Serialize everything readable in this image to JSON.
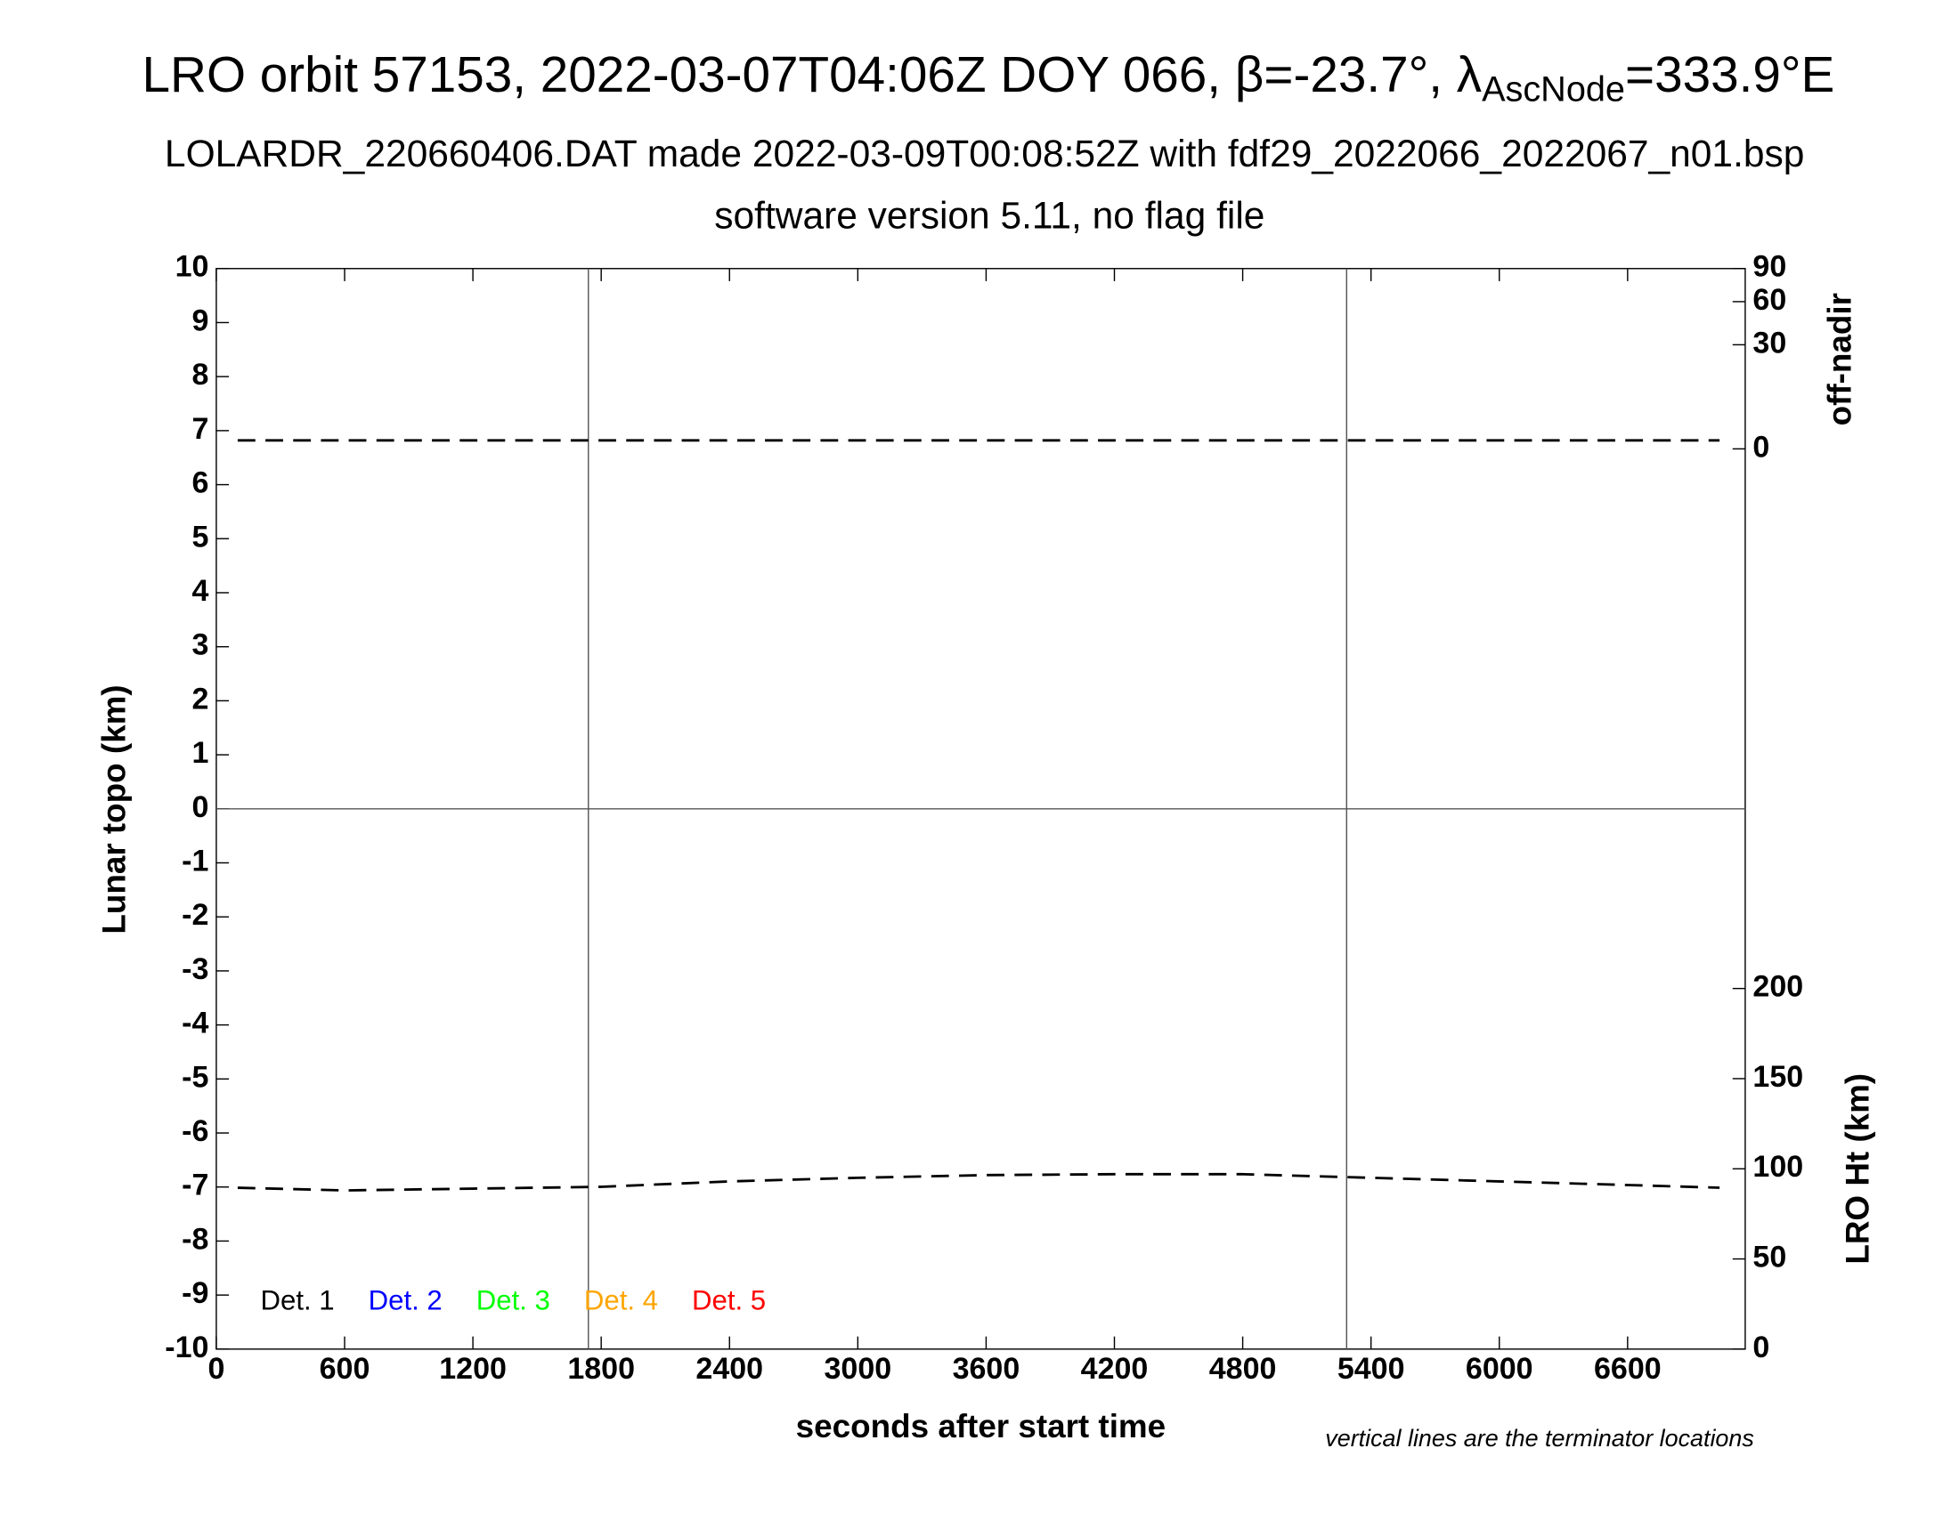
{
  "chart_data": {
    "type": "line",
    "title": "LRO orbit 57153, 2022-03-07T04:06Z DOY 066, β=-23.7°, λ",
    "title_subscript": "AscNode",
    "title_end": "=333.9°E",
    "subtitle": "LOLARDR_220660406.DAT made 2022-03-09T00:08:52Z with fdf29_2022066_2022067_n01.bsp",
    "subtitle2": "software version 5.11, no flag file",
    "xlabel": "seconds after start time",
    "ylabel": "Lunar topo (km)",
    "y2label": "off-nadir",
    "y3label": "LRO Ht (km)",
    "note": "vertical lines are the terminator locations",
    "xlim": [
      0,
      7150
    ],
    "xticks": [
      0,
      600,
      1200,
      1800,
      2400,
      3000,
      3600,
      4200,
      4800,
      5400,
      6000,
      6600
    ],
    "ylim": [
      -10,
      10
    ],
    "yticks": [
      10,
      9,
      8,
      7,
      6,
      5,
      4,
      3,
      2,
      1,
      0,
      -1,
      -2,
      -3,
      -4,
      -5,
      -6,
      -7,
      -8,
      -9,
      -10
    ],
    "y2lim": [
      0,
      90
    ],
    "y2scale": "sqrt",
    "y2ticks": [
      90,
      60,
      30,
      0
    ],
    "y3lim": [
      0,
      200
    ],
    "y3ticks": [
      200,
      150,
      100,
      50,
      0
    ],
    "terminators": [
      1740,
      5286
    ],
    "legend": [
      {
        "name": "Det. 1",
        "color": "#000000"
      },
      {
        "name": "Det. 2",
        "color": "#0000ff"
      },
      {
        "name": "Det. 3",
        "color": "#00ff00"
      },
      {
        "name": "Det. 4",
        "color": "#ffa500"
      },
      {
        "name": "Det. 5",
        "color": "#ff0000"
      }
    ],
    "series": [
      {
        "axis": "y2",
        "color": "#000000",
        "x": [
          100,
          1000,
          2000,
          3000,
          3860,
          4000,
          5000,
          6000,
          7030
        ],
        "values": [
          0.2,
          0.2,
          0.2,
          0.2,
          0.2,
          0.2,
          0.2,
          0.2,
          0.2
        ]
      },
      {
        "axis": "y3",
        "color": "#000000",
        "x": [
          100,
          600,
          1200,
          1800,
          2400,
          3000,
          3600,
          4200,
          4800,
          5400,
          6000,
          6600,
          7030
        ],
        "values": [
          89.5,
          88,
          89,
          90,
          93,
          95,
          96.5,
          97,
          97,
          95,
          93,
          91,
          89.5
        ]
      }
    ]
  }
}
